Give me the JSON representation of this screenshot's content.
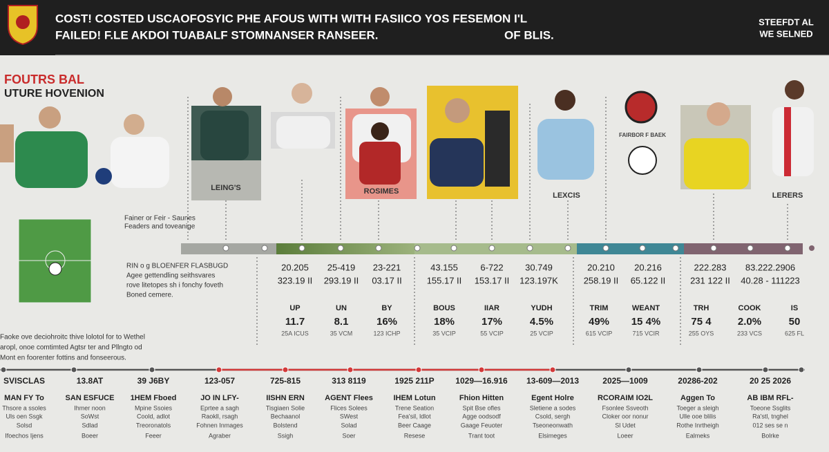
{
  "header": {
    "title_line1": "COST! COSTED USCAOFOSYIC PHE AFOUS WITH WITH FASIICO YOS FESEMON I'L",
    "title_line2": "FAILED! F.LE AKDOI TUABALF STOMNANSER RANSEER.",
    "title_right": "OF BLIS.",
    "corner": [
      "STEEFDT AL",
      "WE SELNED"
    ]
  },
  "section": {
    "title": "FOUTRS BAL",
    "subtitle": "UTURE HOVENION"
  },
  "cards": {
    "labels": [
      "LEING'S",
      "ROSIMES",
      "LEXCIS",
      "LERERS"
    ],
    "badge_caption": "FAIRBOR F BAEK"
  },
  "notes": {
    "top": [
      "Fainer or Feir - Saunes",
      "Feaders and toveanige"
    ],
    "middle": [
      "RIN o g BLOENFER FLASBUGD",
      "Agee gettendling seithsvares",
      "rove litetopes sh i fonchy foveth",
      "Boned cemere."
    ],
    "bottom": [
      "Faoke ove deciohroitc thive lolotol for to Wethel",
      "aropl, onoe comtimted Agtsr ter and Pllngto od",
      "Mont en foorenter fottins and fonseerous."
    ]
  },
  "figures": [
    [
      "20.205",
      "323.19 II"
    ],
    [
      "25-419",
      "293.19 II"
    ],
    [
      "23-221",
      "03.17 II"
    ],
    [
      "43.155",
      "155.17 II"
    ],
    [
      "6-722",
      "153.17 II"
    ],
    [
      "30.749",
      "123.197K"
    ],
    [
      "20.210",
      "258.19 II"
    ],
    [
      "20.216",
      "65.122 II"
    ],
    [
      "222.283",
      "231 122 II"
    ],
    [
      "83.222.2906",
      "40.28 - 111223"
    ]
  ],
  "stats": [
    [
      "UP",
      "11.7",
      "25A ICUS"
    ],
    [
      "UN",
      "8.1",
      "35 VCM"
    ],
    [
      "BY",
      "16%",
      "123 ICHP"
    ],
    [
      "BOUS",
      "18%",
      "35 VCIP"
    ],
    [
      "IIAR",
      "17%",
      "55 VCIP"
    ],
    [
      "YUDH",
      "4.5%",
      "25 VCIP"
    ],
    [
      "TRIM",
      "49%",
      "615 VCIP"
    ],
    [
      "WEANT",
      "15 4%",
      "715 VCIR"
    ],
    [
      "TRH",
      "75 4",
      "255 OYS"
    ],
    [
      "COOK",
      "2.0%",
      "233 VCS"
    ],
    [
      "IS",
      "50",
      "625 FL"
    ]
  ],
  "timeline": [
    [
      "SVISCLAS",
      "MAN FY To",
      "Thsore a ssoles",
      "Uls oen Ssgk",
      "Solsd",
      "Ifoechos Ijens"
    ],
    [
      "13.8AT",
      "SAN ESFUCE",
      "Ihmer noon",
      "SoWst",
      "Sdlad",
      "Boeer"
    ],
    [
      "39 J6BY",
      "1HEM Fboed",
      "Mpine Ssoies",
      "Coold, adlot",
      "Treoronatols",
      "Feeer"
    ],
    [
      "123-057",
      "JO IN LFY-",
      "Eprtee a sagh",
      "Raokll, rsagh",
      "Fohnen Inmages",
      "Agraber"
    ],
    [
      "725-815",
      "IISHN ERN",
      "Tisgiaen Solie",
      "Bechaanol",
      "Bolstend",
      "Ssigh"
    ],
    [
      "313 8119",
      "AGENT Flees",
      "Flices Solees",
      "SWest",
      "Solad",
      "Soer"
    ],
    [
      "1925 211P",
      "IHEM Lotun",
      "Trene Seation",
      "Fea'sil, ldlot",
      "Beer Caage",
      "Resese"
    ],
    [
      "1029—16.916",
      "Fhion Hitten",
      "Spit Bse ofles",
      "Agge oodsodf",
      "Gaage Feuoter",
      "Trant toot"
    ],
    [
      "13-609—2013",
      "Egent Holre",
      "Sletiene a sodes",
      "Csold, sergh",
      "Tseoneonwath",
      "Elsimeges"
    ],
    [
      "2025—1009",
      "RCORAIM IO2L",
      "Fsonlee Ssveoth",
      "Cloker oor nonur",
      "Sl Udet",
      "Loeer"
    ],
    [
      "20286-202",
      "Aggen To",
      "Toeger a sleigh",
      "Ulle ooe blilis",
      "Rothe Inrtheigh",
      "Ealmeks"
    ],
    [
      "20 25 2026",
      "AB IBM RFL-",
      "Toeone Ssglits",
      "Ra'stl, tnghel",
      "012 ses se n",
      "Bolrke"
    ]
  ]
}
